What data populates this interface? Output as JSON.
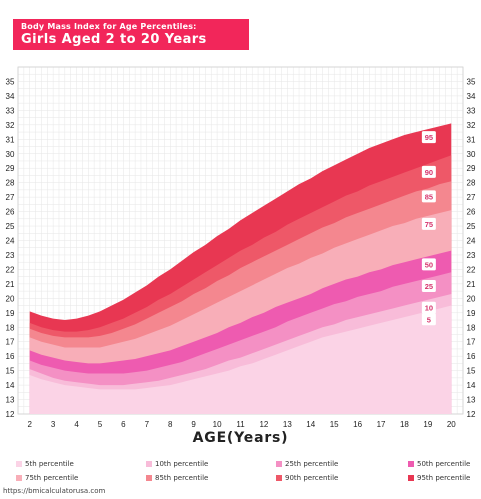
{
  "title": {
    "line1": "Body Mass Index for Age Percentiles:",
    "line2": "Girls Aged 2 to 20 Years"
  },
  "footer": "https://bmicalculatorusa.com",
  "colors": {
    "p5": "#fbd3e6",
    "p10": "#f8bcd9",
    "p25": "#f490c4",
    "p50": "#ee5bb0",
    "p75": "#f8aeb8",
    "p85": "#f4878f",
    "p90": "#ee5868",
    "p95": "#e83752",
    "grid": "#e6e6e6",
    "curve_label": "#d6336c"
  },
  "chart_data": {
    "type": "area",
    "title": "Body Mass Index for Age Percentiles: Girls Aged 2 to 20 Years",
    "xlabel": "AGE(Years)",
    "ylabel": "",
    "xlim": [
      1.5,
      20.5
    ],
    "ylim": [
      12,
      36
    ],
    "xticks": [
      2,
      3,
      4,
      5,
      6,
      7,
      8,
      9,
      10,
      11,
      12,
      13,
      14,
      15,
      16,
      17,
      18,
      19,
      20
    ],
    "yticks": [
      12,
      13,
      14,
      15,
      16,
      17,
      18,
      19,
      20,
      21,
      22,
      23,
      24,
      25,
      26,
      27,
      28,
      29,
      30,
      31,
      32,
      33,
      34,
      35
    ],
    "grid": true,
    "legend_position": "bottom",
    "x": [
      2,
      2.5,
      3,
      3.5,
      4,
      4.5,
      5,
      5.5,
      6,
      6.5,
      7,
      7.5,
      8,
      8.5,
      9,
      9.5,
      10,
      10.5,
      11,
      11.5,
      12,
      12.5,
      13,
      13.5,
      14,
      14.5,
      15,
      15.5,
      16,
      16.5,
      17,
      17.5,
      18,
      18.5,
      19,
      19.5,
      20
    ],
    "series": [
      {
        "name": "5th percentile",
        "curve_label": "5",
        "color_key": "p5",
        "values": [
          14.7,
          14.4,
          14.2,
          14.0,
          13.9,
          13.8,
          13.7,
          13.7,
          13.7,
          13.7,
          13.8,
          13.9,
          14.0,
          14.2,
          14.4,
          14.6,
          14.8,
          15.0,
          15.3,
          15.5,
          15.8,
          16.1,
          16.4,
          16.7,
          17.0,
          17.3,
          17.5,
          17.7,
          17.9,
          18.1,
          18.3,
          18.5,
          18.7,
          18.9,
          19.1,
          19.3,
          19.5
        ]
      },
      {
        "name": "10th percentile",
        "curve_label": "10",
        "color_key": "p10",
        "values": [
          15.1,
          14.8,
          14.5,
          14.3,
          14.2,
          14.1,
          14.0,
          14.0,
          14.0,
          14.1,
          14.2,
          14.3,
          14.5,
          14.7,
          14.9,
          15.1,
          15.4,
          15.7,
          15.9,
          16.2,
          16.5,
          16.8,
          17.1,
          17.4,
          17.7,
          18.0,
          18.2,
          18.5,
          18.7,
          18.9,
          19.1,
          19.3,
          19.5,
          19.7,
          19.9,
          20.1,
          20.3
        ]
      },
      {
        "name": "25th percentile",
        "curve_label": "25",
        "color_key": "p25",
        "values": [
          15.7,
          15.4,
          15.2,
          15.0,
          14.9,
          14.8,
          14.8,
          14.8,
          14.8,
          14.9,
          15.0,
          15.2,
          15.4,
          15.6,
          15.9,
          16.2,
          16.5,
          16.8,
          17.1,
          17.4,
          17.7,
          18.0,
          18.4,
          18.7,
          19.0,
          19.3,
          19.6,
          19.8,
          20.1,
          20.3,
          20.5,
          20.8,
          21.0,
          21.2,
          21.4,
          21.6,
          21.8
        ]
      },
      {
        "name": "50th percentile",
        "curve_label": "50",
        "color_key": "p50",
        "values": [
          16.4,
          16.1,
          15.9,
          15.7,
          15.6,
          15.5,
          15.5,
          15.6,
          15.7,
          15.8,
          16.0,
          16.2,
          16.4,
          16.7,
          17.0,
          17.3,
          17.6,
          18.0,
          18.3,
          18.7,
          19.0,
          19.4,
          19.7,
          20.0,
          20.3,
          20.7,
          21.0,
          21.3,
          21.5,
          21.8,
          22.0,
          22.3,
          22.5,
          22.7,
          22.9,
          23.1,
          23.3
        ]
      },
      {
        "name": "75th percentile",
        "curve_label": "75",
        "color_key": "p75",
        "values": [
          17.3,
          17.0,
          16.8,
          16.6,
          16.6,
          16.6,
          16.6,
          16.8,
          17.0,
          17.2,
          17.5,
          17.8,
          18.1,
          18.5,
          18.9,
          19.3,
          19.7,
          20.1,
          20.5,
          20.9,
          21.3,
          21.7,
          22.1,
          22.4,
          22.8,
          23.1,
          23.5,
          23.8,
          24.1,
          24.4,
          24.7,
          25.0,
          25.2,
          25.5,
          25.7,
          25.9,
          26.1
        ]
      },
      {
        "name": "85th percentile",
        "curve_label": "85",
        "color_key": "p85",
        "values": [
          17.9,
          17.6,
          17.4,
          17.3,
          17.3,
          17.3,
          17.4,
          17.6,
          17.9,
          18.2,
          18.6,
          19.0,
          19.4,
          19.8,
          20.3,
          20.7,
          21.2,
          21.6,
          22.1,
          22.5,
          22.9,
          23.3,
          23.7,
          24.1,
          24.5,
          24.9,
          25.2,
          25.6,
          25.9,
          26.2,
          26.5,
          26.8,
          27.1,
          27.4,
          27.6,
          27.9,
          28.1
        ]
      },
      {
        "name": "90th percentile",
        "curve_label": "90",
        "color_key": "p90",
        "values": [
          18.3,
          18.0,
          17.8,
          17.7,
          17.7,
          17.8,
          18.0,
          18.3,
          18.6,
          19.0,
          19.4,
          19.9,
          20.3,
          20.8,
          21.3,
          21.8,
          22.3,
          22.8,
          23.3,
          23.7,
          24.2,
          24.6,
          25.1,
          25.5,
          25.9,
          26.3,
          26.7,
          27.1,
          27.4,
          27.8,
          28.1,
          28.4,
          28.7,
          29.0,
          29.3,
          29.6,
          29.9
        ]
      },
      {
        "name": "95th percentile",
        "curve_label": "95",
        "color_key": "p95",
        "values": [
          19.1,
          18.8,
          18.6,
          18.5,
          18.6,
          18.8,
          19.1,
          19.5,
          19.9,
          20.4,
          20.9,
          21.5,
          22.0,
          22.6,
          23.2,
          23.7,
          24.3,
          24.8,
          25.4,
          25.9,
          26.4,
          26.9,
          27.4,
          27.9,
          28.3,
          28.8,
          29.2,
          29.6,
          30.0,
          30.4,
          30.7,
          31.0,
          31.3,
          31.5,
          31.7,
          31.9,
          32.1
        ]
      }
    ]
  }
}
